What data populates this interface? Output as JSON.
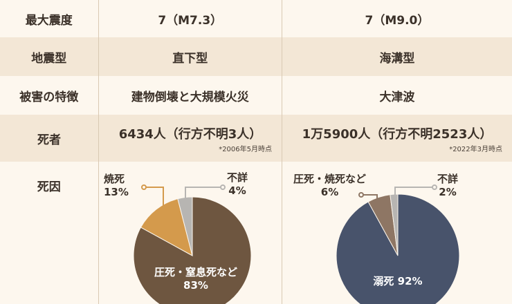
{
  "rows": {
    "intensity": {
      "label": "最大震度",
      "kobe": "7（M7.3）",
      "tohoku": "7（M9.0）"
    },
    "type": {
      "label": "地震型",
      "kobe": "直下型",
      "tohoku": "海溝型"
    },
    "damage": {
      "label": "被害の特徴",
      "kobe": "建物倒壊と大規模火災",
      "tohoku": "大津波"
    },
    "deaths": {
      "label": "死者",
      "kobe": "6434人（行方不明3人）",
      "kobe_note": "*2006年5月時点",
      "tohoku": "1万5900人（行方不明2523人）",
      "tohoku_note": "*2022年3月時点"
    },
    "cause": {
      "label": "死因"
    }
  },
  "chart_data": [
    {
      "type": "pie",
      "slices": [
        {
          "label": "圧死・窒息死など",
          "value": 83,
          "display": "83%",
          "color": "#6e5640"
        },
        {
          "label": "焼死",
          "value": 13,
          "display": "13%",
          "color": "#d49a4c"
        },
        {
          "label": "不詳",
          "value": 4,
          "display": "4%",
          "color": "#b7b5b2"
        }
      ]
    },
    {
      "type": "pie",
      "slices": [
        {
          "label": "溺死",
          "value": 92,
          "display": "92%",
          "color": "#48536b"
        },
        {
          "label": "圧死・焼死など",
          "value": 6,
          "display": "6%",
          "color": "#8e7664"
        },
        {
          "label": "不詳",
          "value": 2,
          "display": "2%",
          "color": "#b7b5b2"
        }
      ]
    }
  ]
}
